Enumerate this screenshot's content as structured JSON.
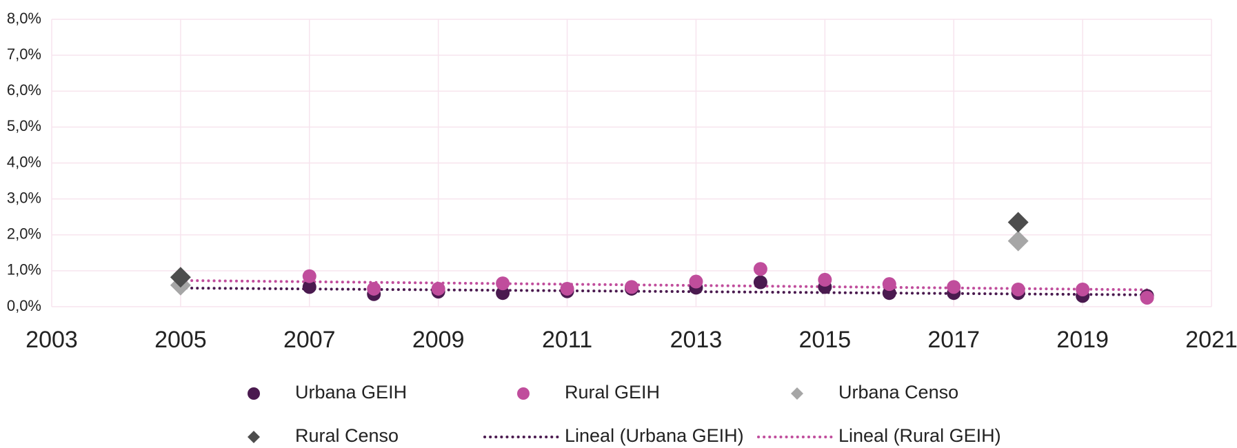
{
  "chart_data": {
    "type": "scatter",
    "xlim": [
      2003,
      2021
    ],
    "xticks": [
      2003,
      2005,
      2007,
      2009,
      2011,
      2013,
      2015,
      2017,
      2019,
      2021
    ],
    "ylim": [
      0,
      8
    ],
    "yticks": [
      {
        "value": 0,
        "label": "0,0%"
      },
      {
        "value": 1,
        "label": "1,0%"
      },
      {
        "value": 2,
        "label": "2,0%"
      },
      {
        "value": 3,
        "label": "3,0%"
      },
      {
        "value": 4,
        "label": "4,0%"
      },
      {
        "value": 5,
        "label": "5,0%"
      },
      {
        "value": 6,
        "label": "6,0%"
      },
      {
        "value": 7,
        "label": "7,0%"
      },
      {
        "value": 8,
        "label": "8,0%"
      }
    ],
    "grid": true,
    "series": [
      {
        "name": "Urbana GEIH",
        "color": "#4a1a4f",
        "marker": "circle",
        "x": [
          2007,
          2008,
          2009,
          2010,
          2011,
          2012,
          2013,
          2014,
          2015,
          2016,
          2017,
          2018,
          2019,
          2020
        ],
        "values": [
          0.55,
          0.35,
          0.42,
          0.38,
          0.43,
          0.5,
          0.53,
          0.68,
          0.55,
          0.38,
          0.38,
          0.38,
          0.3,
          0.3
        ]
      },
      {
        "name": "Rural GEIH",
        "color": "#c04d9c",
        "marker": "circle",
        "x": [
          2007,
          2008,
          2009,
          2010,
          2011,
          2012,
          2013,
          2014,
          2015,
          2016,
          2017,
          2018,
          2019,
          2020
        ],
        "values": [
          0.85,
          0.5,
          0.5,
          0.65,
          0.5,
          0.55,
          0.7,
          1.05,
          0.75,
          0.63,
          0.55,
          0.48,
          0.48,
          0.25
        ]
      },
      {
        "name": "Urbana Censo",
        "color": "#a6a6a6",
        "marker": "diamond",
        "x": [
          2005,
          2018
        ],
        "values": [
          0.6,
          1.83
        ]
      },
      {
        "name": "Rural Censo",
        "color": "#4d4d4d",
        "marker": "diamond",
        "x": [
          2005,
          2018
        ],
        "values": [
          0.82,
          2.35
        ]
      },
      {
        "name": "Lineal (Urbana GEIH)",
        "color": "#4a1a4f",
        "marker": "dotted",
        "x": [
          2005,
          2020
        ],
        "values": [
          0.52,
          0.33
        ]
      },
      {
        "name": "Lineal (Rural GEIH)",
        "color": "#c04d9c",
        "marker": "dotted",
        "x": [
          2005,
          2020
        ],
        "values": [
          0.73,
          0.47
        ]
      }
    ]
  }
}
